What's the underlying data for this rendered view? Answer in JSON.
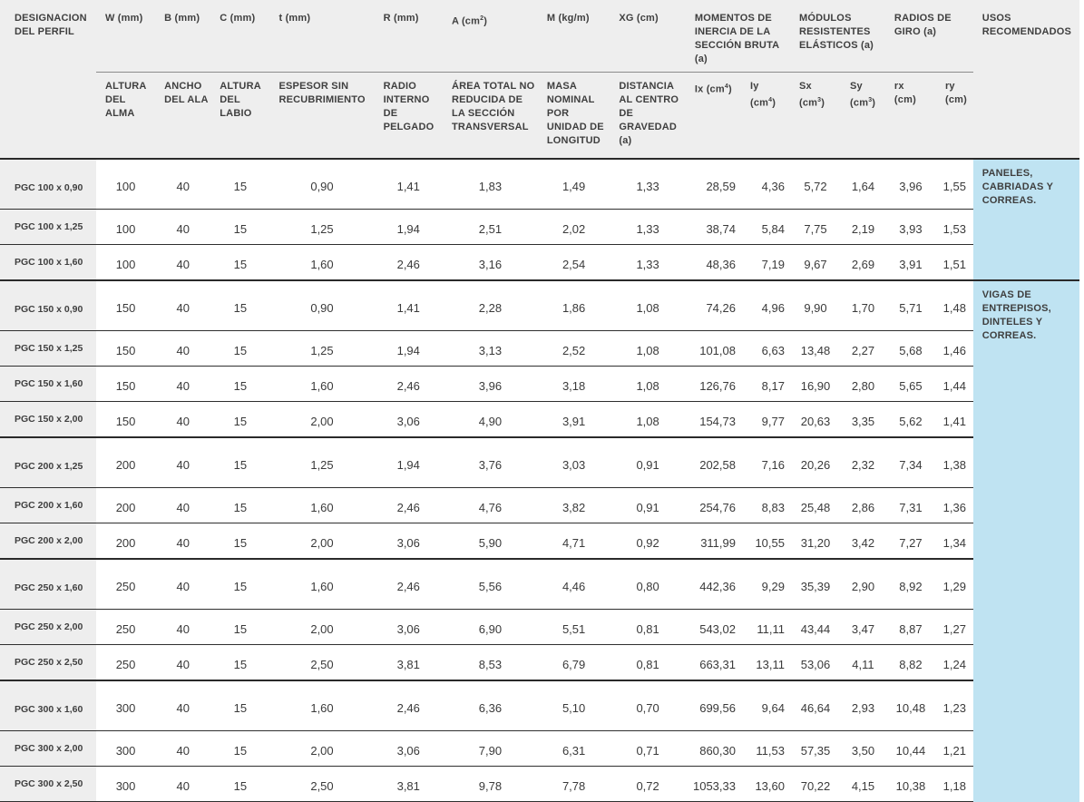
{
  "headers": {
    "perfil": "DESIGNACION DEL PERFIL",
    "W": "W (mm)",
    "B": "B (mm)",
    "C": "C (mm)",
    "t": "t (mm)",
    "R": "R (mm)",
    "A": "A (cm²)",
    "M": "M (kg/m)",
    "XG": "XG (cm)",
    "momentos": "MOMENTOS DE INERCIA DE LA SECCIÓN BRUTA (a)",
    "modulos": "MÓDULOS RESISTENTES ELÁSTICOS (a)",
    "radios": "RADIOS DE GIRO (a)",
    "usos": "USOS RECOMENDADOS"
  },
  "subheaders": {
    "W": "ALTURA DEL ALMA",
    "B": "ANCHO DEL ALA",
    "C": "ALTURA DEL LABIO",
    "t": "ESPESOR SIN RECUBRIMIENTO",
    "R": "RADIO INTERNO DE PELGADO",
    "A": "ÁREA TOTAL NO REDUCIDA DE LA SECCIÓN TRANSVERSAL",
    "M": "MASA NOMINAL POR UNIDAD DE LONGITUD",
    "XG": "DISTANCIA AL CENTRO DE GRAVEDAD (a)",
    "Ix": "Ix (cm⁴)",
    "Iy": "Iy (cm⁴)",
    "Sx": "Sx (cm³)",
    "Sy": "Sy (cm³)",
    "rx": "rx (cm)",
    "ry": "ry (cm)"
  },
  "groups": [
    {
      "usos": "PANELES, CABRIADAS Y CORREAS.",
      "rows": [
        [
          "PGC 100 x 0,90",
          "100",
          "40",
          "15",
          "0,90",
          "1,41",
          "1,83",
          "1,49",
          "1,33",
          "28,59",
          "4,36",
          "5,72",
          "1,64",
          "3,96",
          "1,55"
        ],
        [
          "PGC 100 x 1,25",
          "100",
          "40",
          "15",
          "1,25",
          "1,94",
          "2,51",
          "2,02",
          "1,33",
          "38,74",
          "5,84",
          "7,75",
          "2,19",
          "3,93",
          "1,53"
        ],
        [
          "PGC 100 x 1,60",
          "100",
          "40",
          "15",
          "1,60",
          "2,46",
          "3,16",
          "2,54",
          "1,33",
          "48,36",
          "7,19",
          "9,67",
          "2,69",
          "3,91",
          "1,51"
        ]
      ]
    },
    {
      "usos": "VIGAS DE ENTREPISOS, DINTELES Y CORREAS.",
      "rows": [
        [
          "PGC 150 x 0,90",
          "150",
          "40",
          "15",
          "0,90",
          "1,41",
          "2,28",
          "1,86",
          "1,08",
          "74,26",
          "4,96",
          "9,90",
          "1,70",
          "5,71",
          "1,48"
        ],
        [
          "PGC 150 x 1,25",
          "150",
          "40",
          "15",
          "1,25",
          "1,94",
          "3,13",
          "2,52",
          "1,08",
          "101,08",
          "6,63",
          "13,48",
          "2,27",
          "5,68",
          "1,46"
        ],
        [
          "PGC 150 x 1,60",
          "150",
          "40",
          "15",
          "1,60",
          "2,46",
          "3,96",
          "3,18",
          "1,08",
          "126,76",
          "8,17",
          "16,90",
          "2,80",
          "5,65",
          "1,44"
        ],
        [
          "PGC 150 x 2,00",
          "150",
          "40",
          "15",
          "2,00",
          "3,06",
          "4,90",
          "3,91",
          "1,08",
          "154,73",
          "9,77",
          "20,63",
          "3,35",
          "5,62",
          "1,41"
        ]
      ]
    },
    {
      "usos": "",
      "rows": [
        [
          "PGC 200 x 1,25",
          "200",
          "40",
          "15",
          "1,25",
          "1,94",
          "3,76",
          "3,03",
          "0,91",
          "202,58",
          "7,16",
          "20,26",
          "2,32",
          "7,34",
          "1,38"
        ],
        [
          "PGC 200 x 1,60",
          "200",
          "40",
          "15",
          "1,60",
          "2,46",
          "4,76",
          "3,82",
          "0,91",
          "254,76",
          "8,83",
          "25,48",
          "2,86",
          "7,31",
          "1,36"
        ],
        [
          "PGC 200 x 2,00",
          "200",
          "40",
          "15",
          "2,00",
          "3,06",
          "5,90",
          "4,71",
          "0,92",
          "311,99",
          "10,55",
          "31,20",
          "3,42",
          "7,27",
          "1,34"
        ]
      ]
    },
    {
      "usos": "",
      "rows": [
        [
          "PGC 250 x 1,60",
          "250",
          "40",
          "15",
          "1,60",
          "2,46",
          "5,56",
          "4,46",
          "0,80",
          "442,36",
          "9,29",
          "35,39",
          "2,90",
          "8,92",
          "1,29"
        ],
        [
          "PGC 250 x 2,00",
          "250",
          "40",
          "15",
          "2,00",
          "3,06",
          "6,90",
          "5,51",
          "0,81",
          "543,02",
          "11,11",
          "43,44",
          "3,47",
          "8,87",
          "1,27"
        ],
        [
          "PGC 250 x 2,50",
          "250",
          "40",
          "15",
          "2,50",
          "3,81",
          "8,53",
          "6,79",
          "0,81",
          "663,31",
          "13,11",
          "53,06",
          "4,11",
          "8,82",
          "1,24"
        ]
      ]
    },
    {
      "usos": "",
      "rows": [
        [
          "PGC 300 x 1,60",
          "300",
          "40",
          "15",
          "1,60",
          "2,46",
          "6,36",
          "5,10",
          "0,70",
          "699,56",
          "9,64",
          "46,64",
          "2,93",
          "10,48",
          "1,23"
        ],
        [
          "PGC 300 x 2,00",
          "300",
          "40",
          "15",
          "2,00",
          "3,06",
          "7,90",
          "6,31",
          "0,71",
          "860,30",
          "11,53",
          "57,35",
          "3,50",
          "10,44",
          "1,21"
        ],
        [
          "PGC 300 x 2,50",
          "300",
          "40",
          "15",
          "2,50",
          "3,81",
          "9,78",
          "7,78",
          "0,72",
          "1053,33",
          "13,60",
          "70,22",
          "4,15",
          "10,38",
          "1,18"
        ]
      ]
    }
  ]
}
